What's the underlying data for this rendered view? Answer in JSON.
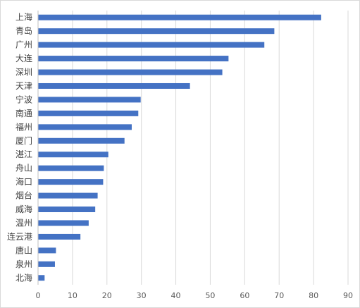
{
  "chart_data": {
    "type": "bar",
    "orientation": "horizontal",
    "title": "",
    "xlabel": "",
    "ylabel": "",
    "categories": [
      "上海",
      "青岛",
      "广州",
      "大连",
      "深圳",
      "天津",
      "宁波",
      "南通",
      "福州",
      "厦门",
      "湛江",
      "舟山",
      "海口",
      "烟台",
      "威海",
      "温州",
      "连云港",
      "唐山",
      "泉州",
      "北海"
    ],
    "values": [
      82.1,
      68.5,
      65.6,
      55.2,
      53.4,
      44.0,
      29.7,
      29.0,
      27.1,
      25.0,
      20.3,
      19.0,
      18.8,
      17.2,
      16.5,
      14.6,
      12.2,
      5.1,
      4.8,
      1.8
    ],
    "xlim": [
      0,
      90
    ],
    "xticks": [
      "0",
      "10",
      "20",
      "30",
      "40",
      "50",
      "60",
      "70",
      "80",
      "90"
    ],
    "grid": true,
    "legend": "none",
    "bar_color": "#4472c4"
  }
}
